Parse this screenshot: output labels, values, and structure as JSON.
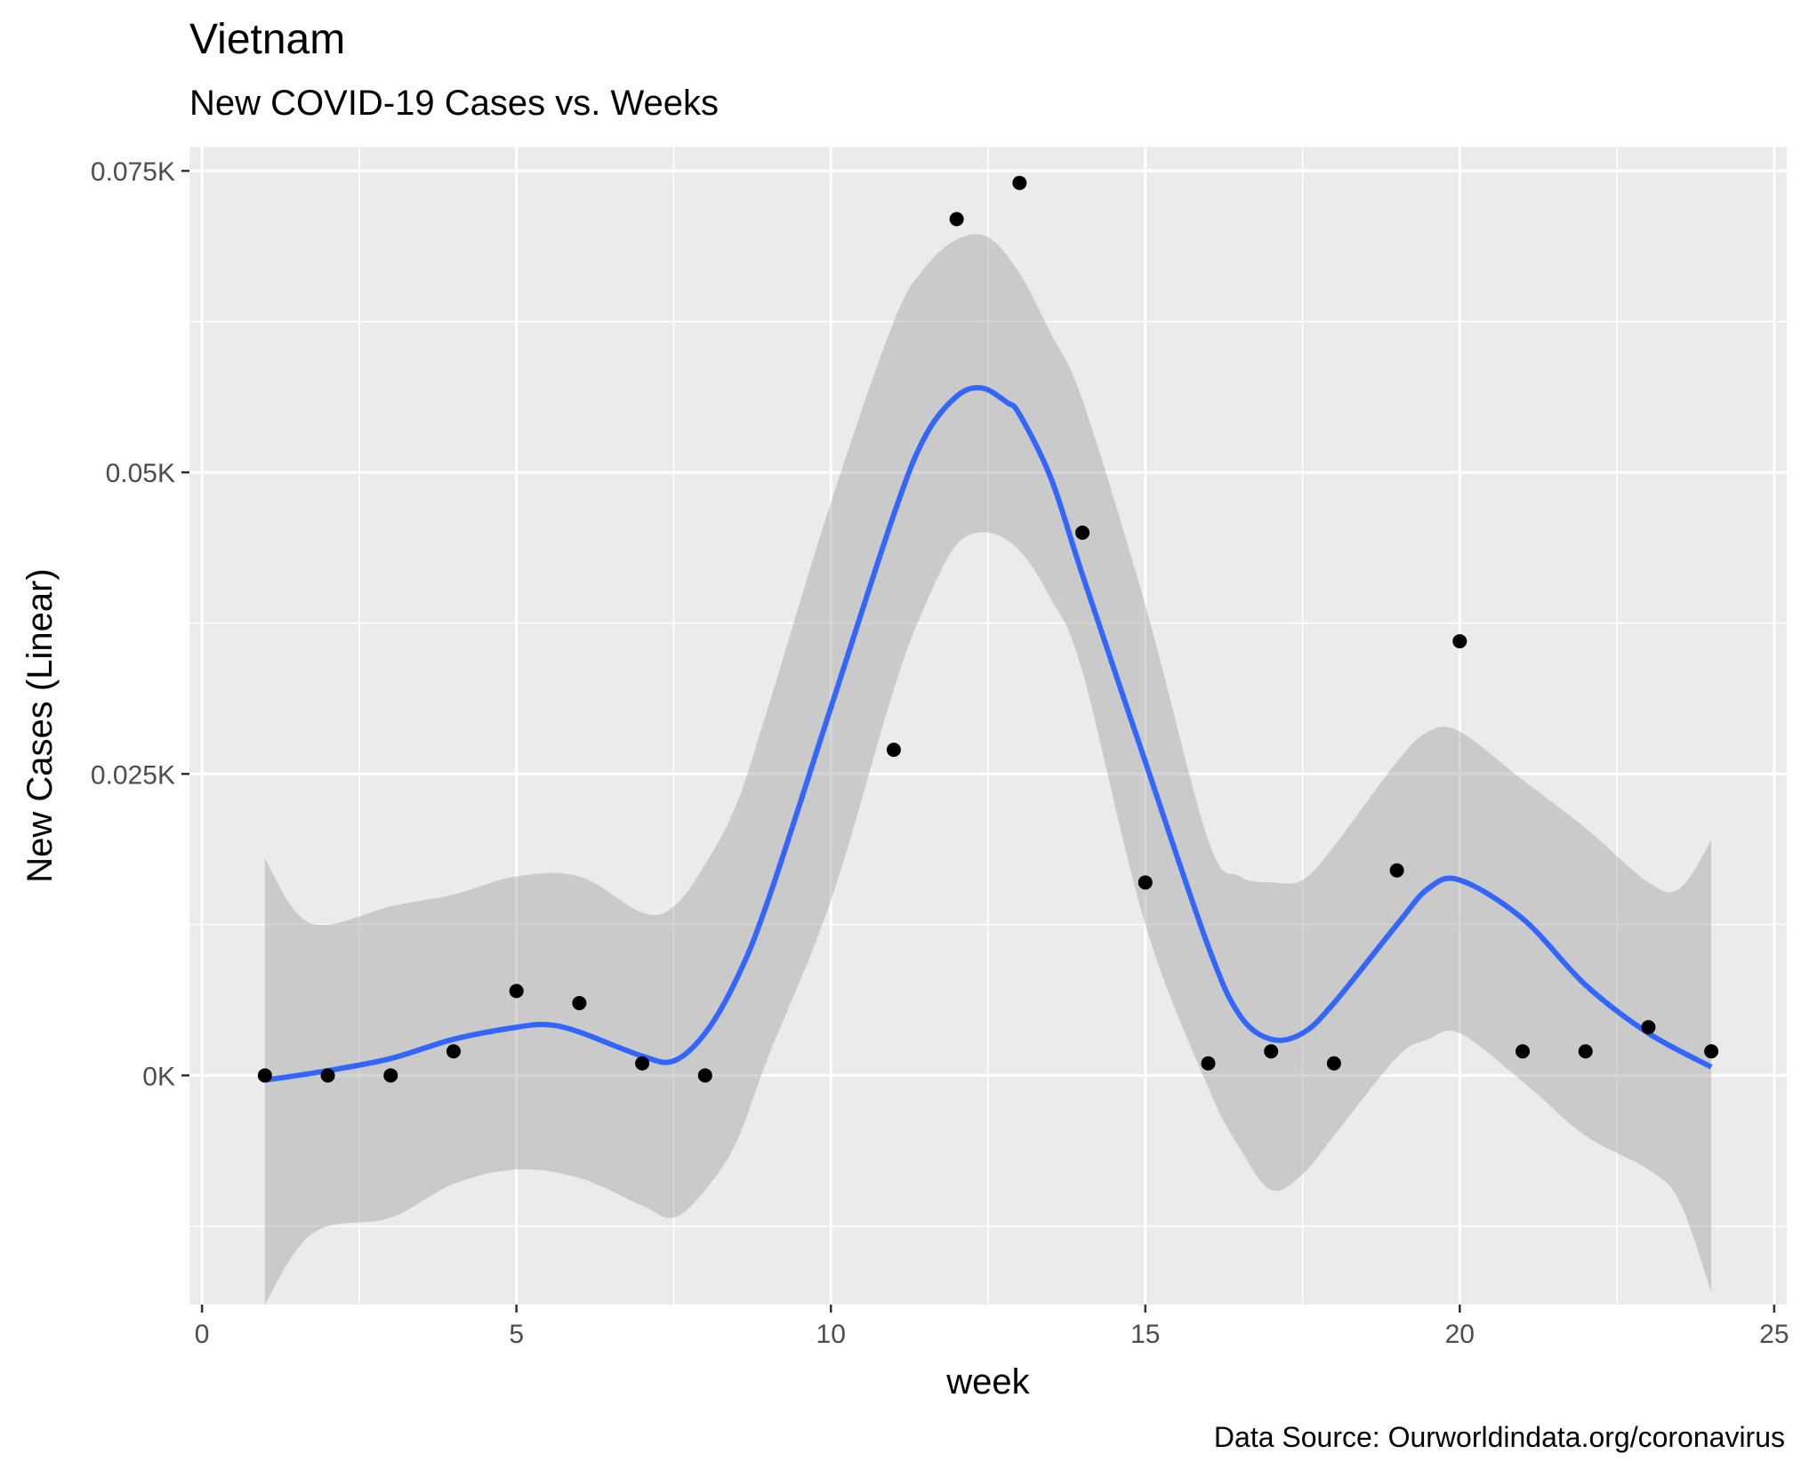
{
  "chart_data": {
    "type": "scatter",
    "title": "Vietnam",
    "subtitle": "New COVID-19 Cases vs. Weeks",
    "xlabel": "week",
    "ylabel": "New Cases (Linear)",
    "caption": "Data Source: Ourworldindata.org/coronavirus",
    "xlim": [
      -0.2,
      25.2
    ],
    "ylim": [
      -0.019,
      0.077
    ],
    "x_ticks": [
      0,
      5,
      10,
      15,
      20,
      25
    ],
    "x_tick_labels": [
      "0",
      "5",
      "10",
      "15",
      "20",
      "25"
    ],
    "y_ticks": [
      0,
      0.025,
      0.05,
      0.075
    ],
    "y_tick_labels": [
      "0K",
      "0.025K",
      "0.05K",
      "0.075K"
    ],
    "grid": true,
    "colors": {
      "panel": "#ebebeb",
      "grid": "#ffffff",
      "points": "#000000",
      "smooth_line": "#3366ff",
      "ribbon": "#999999"
    },
    "points": {
      "x": [
        1,
        2,
        3,
        4,
        5,
        6,
        7,
        8,
        11,
        12,
        13,
        14,
        15,
        16,
        17,
        18,
        19,
        20,
        21,
        22,
        23,
        24
      ],
      "y": [
        0.0,
        0.0,
        0.0,
        0.002,
        0.007,
        0.006,
        0.001,
        0.0,
        0.027,
        0.071,
        0.074,
        0.045,
        0.016,
        0.001,
        0.002,
        0.001,
        0.017,
        0.036,
        0.002,
        0.002,
        0.004,
        0.002
      ]
    },
    "smooth": {
      "x": [
        1,
        2,
        3,
        4,
        5,
        5.5,
        6,
        7,
        7.5,
        8,
        8.5,
        9,
        10,
        11,
        11.5,
        12,
        12.4,
        12.8,
        13,
        13.5,
        14,
        15,
        16,
        16.5,
        17,
        17.5,
        18,
        19,
        19.5,
        20,
        21,
        22,
        23,
        24
      ],
      "y": [
        -0.0004,
        0.0004,
        0.0014,
        0.003,
        0.004,
        0.0042,
        0.0036,
        0.0016,
        0.0012,
        0.0035,
        0.008,
        0.0145,
        0.0305,
        0.0465,
        0.053,
        0.0563,
        0.057,
        0.0558,
        0.0548,
        0.0495,
        0.0415,
        0.026,
        0.0107,
        0.005,
        0.003,
        0.0035,
        0.006,
        0.0125,
        0.0155,
        0.0162,
        0.013,
        0.0075,
        0.0035,
        0.0007
      ]
    },
    "ribbon_upper": {
      "x": [
        1,
        1.5,
        2,
        3,
        4,
        5,
        6,
        7,
        7.5,
        8,
        8.5,
        9,
        10,
        11,
        11.5,
        12,
        12.5,
        13,
        13.5,
        14,
        15,
        16,
        16.5,
        17,
        17.5,
        18,
        19,
        19.5,
        20,
        21,
        22,
        23,
        23.5,
        24
      ],
      "y": [
        0.018,
        0.0135,
        0.0125,
        0.014,
        0.015,
        0.0165,
        0.0165,
        0.0135,
        0.014,
        0.0175,
        0.0225,
        0.0305,
        0.0475,
        0.0625,
        0.067,
        0.0693,
        0.0695,
        0.0665,
        0.0615,
        0.056,
        0.039,
        0.0195,
        0.0165,
        0.016,
        0.0162,
        0.019,
        0.026,
        0.0285,
        0.0285,
        0.0245,
        0.0205,
        0.016,
        0.0155,
        0.0195
      ]
    },
    "ribbon_lower": {
      "x": [
        1,
        1.5,
        2,
        3,
        4,
        5,
        6,
        7,
        7.5,
        8,
        8.5,
        9,
        10,
        11,
        11.5,
        12,
        12.5,
        13,
        13.5,
        14,
        15,
        16,
        16.5,
        17,
        17.5,
        18,
        19,
        19.5,
        20,
        21,
        22,
        23,
        23.5,
        24
      ],
      "y": [
        -0.019,
        -0.0145,
        -0.0125,
        -0.0118,
        -0.009,
        -0.0078,
        -0.0085,
        -0.0108,
        -0.0118,
        -0.0095,
        -0.0055,
        0.0015,
        0.0145,
        0.032,
        0.039,
        0.044,
        0.045,
        0.0435,
        0.0395,
        0.0335,
        0.0125,
        -0.001,
        -0.006,
        -0.0095,
        -0.0082,
        -0.005,
        0.0015,
        0.003,
        0.0035,
        -0.0005,
        -0.005,
        -0.0078,
        -0.0105,
        -0.018
      ]
    }
  }
}
